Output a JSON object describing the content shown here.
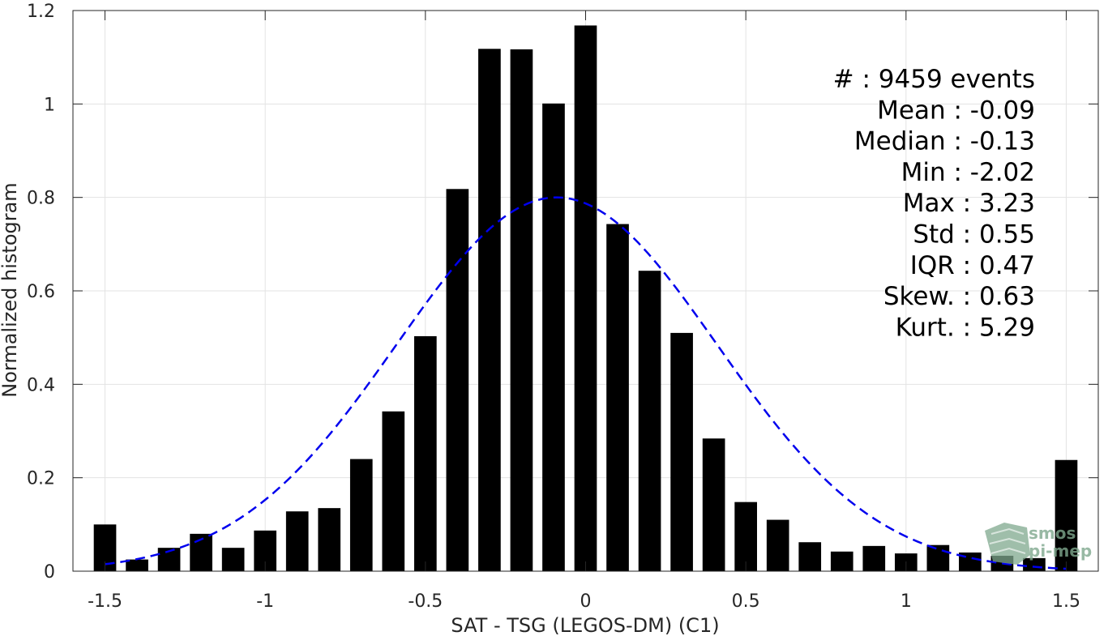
{
  "chart_data": {
    "type": "bar",
    "xlabel": "SAT - TSG (LEGOS-DM) (C1)",
    "ylabel": "Normalized histogram",
    "xlim": [
      -1.6,
      1.6
    ],
    "ylim": [
      0,
      1.2
    ],
    "xticks": [
      -1.5,
      -1,
      -0.5,
      0,
      0.5,
      1,
      1.5
    ],
    "xtick_labels": [
      "-1.5",
      "-1",
      "-0.5",
      "0",
      "0.5",
      "1",
      "1.5"
    ],
    "yticks": [
      0,
      0.2,
      0.4,
      0.6,
      0.8,
      1.0,
      1.2
    ],
    "ytick_labels": [
      "0",
      "0.2",
      "0.4",
      "0.6",
      "0.8",
      "1",
      "1.2"
    ],
    "grid": true,
    "bar_width": 0.07,
    "bar_color": "#000000",
    "x": [
      -1.5,
      -1.4,
      -1.3,
      -1.2,
      -1.1,
      -1.0,
      -0.9,
      -0.8,
      -0.7,
      -0.6,
      -0.5,
      -0.4,
      -0.3,
      -0.2,
      -0.1,
      0.0,
      0.1,
      0.2,
      0.3,
      0.4,
      0.5,
      0.6,
      0.7,
      0.8,
      0.9,
      1.0,
      1.1,
      1.2,
      1.3,
      1.4,
      1.5
    ],
    "values": [
      0.1,
      0.025,
      0.05,
      0.08,
      0.05,
      0.087,
      0.128,
      0.135,
      0.24,
      0.342,
      0.503,
      0.818,
      1.118,
      1.117,
      1.001,
      1.168,
      0.743,
      0.643,
      0.51,
      0.284,
      0.148,
      0.11,
      0.062,
      0.042,
      0.054,
      0.038,
      0.056,
      0.04,
      0.033,
      0.028,
      0.238
    ],
    "fit_curve": {
      "style": "dashed",
      "color": "#0000ee",
      "mean": -0.09,
      "std": 0.5,
      "peak": 0.8,
      "x_range": [
        -1.5,
        1.5
      ]
    },
    "stats": [
      "#  : 9459 events",
      "Mean : -0.09",
      "Median : -0.13",
      "Min : -2.02",
      "Max : 3.23",
      "Std : 0.55",
      "IQR : 0.47",
      "Skew. : 0.63",
      "Kurt. : 5.29"
    ]
  },
  "watermark": {
    "line1": "smos",
    "line2": "pi-mep",
    "color": "#7fa88e"
  }
}
